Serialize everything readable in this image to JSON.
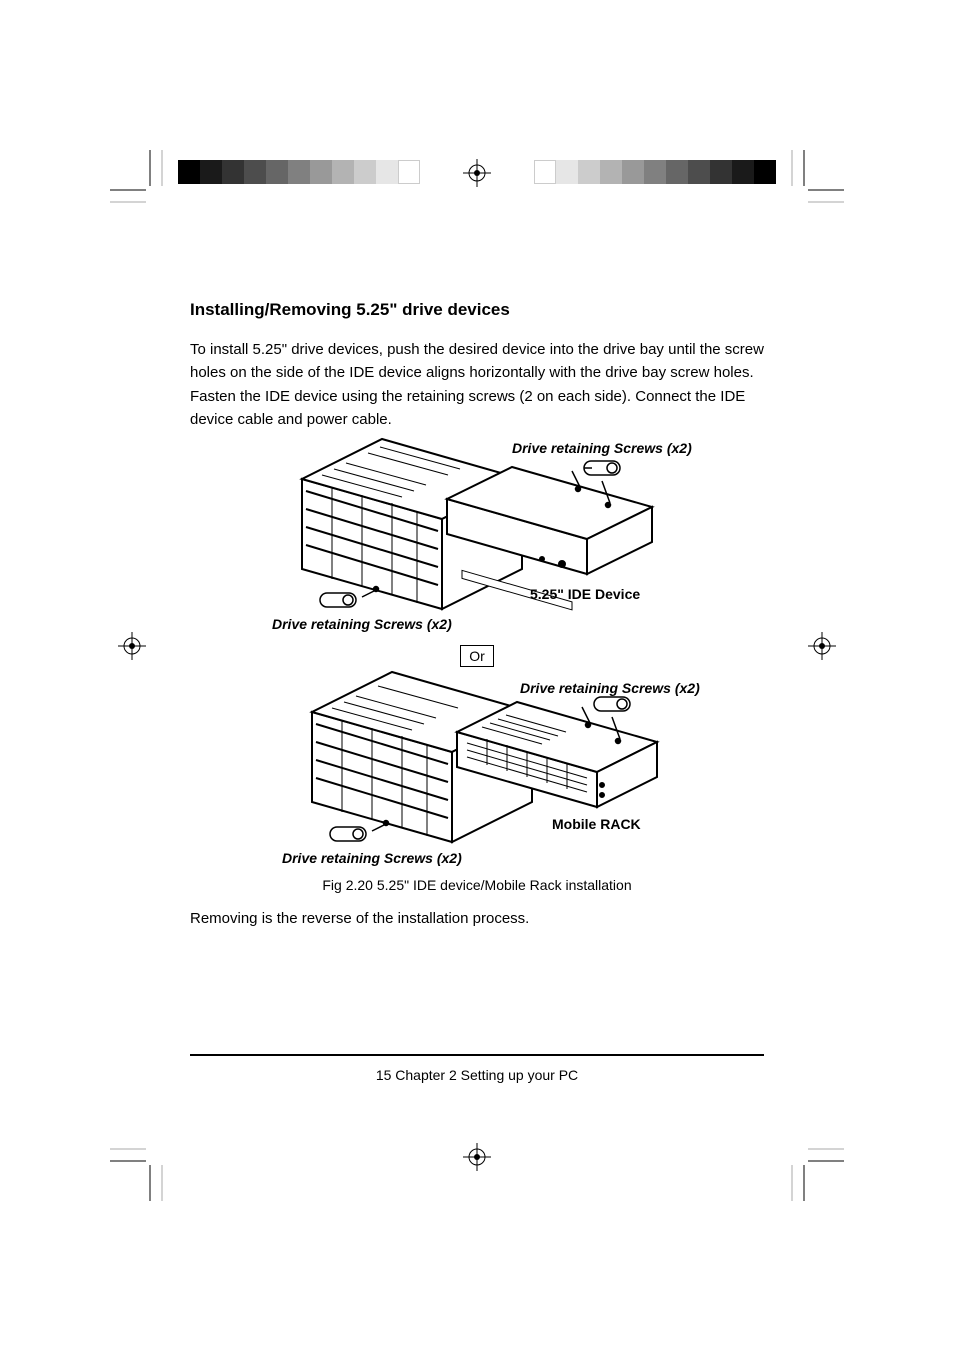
{
  "section": {
    "title": "Installing/Removing 5.25\" drive devices",
    "para1": "To install 5.25\" drive devices, push the desired device into the drive bay until the screw holes on the side of the IDE device aligns horizontally with the drive bay screw holes. Fasten the IDE device using the retaining screws (2 on each side). Connect the IDE device cable and power cable.",
    "para2": "Removing is the reverse of the installation process.",
    "figure_top": {
      "screws_left": "Drive retaining Screws (x2)",
      "screws_right": "Drive retaining Screws (x2)",
      "device_label": "5.25\" IDE Device"
    },
    "or_label": "Or",
    "figure_bottom": {
      "screws_left": "Drive retaining Screws (x2)",
      "screws_right": "Drive retaining Screws (x2)",
      "device_label": "Mobile RACK"
    },
    "caption": "Fig 2.20 5.25\" IDE device/Mobile Rack installation"
  },
  "footer": "15  Chapter 2 Setting up your PC",
  "greyscale_colors": [
    "#000000",
    "#1a1a1a",
    "#333333",
    "#4d4d4d",
    "#666666",
    "#808080",
    "#999999",
    "#b3b3b3",
    "#cccccc",
    "#e6e6e6",
    "#ffffff"
  ],
  "colors": {
    "text": "#000000",
    "bg": "#ffffff"
  }
}
